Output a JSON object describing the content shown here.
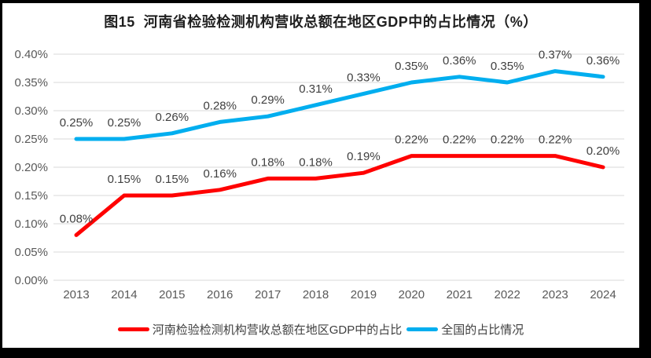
{
  "title": "图15  河南省检验检测机构营收总额在地区GDP中的占比情况（%）",
  "colors": {
    "frame_border": "#000000",
    "background": "#FFFFFF",
    "gridline": "#D9D9D9",
    "axis_text": "#595959",
    "data_label_text": "#3F3F3F",
    "title_text": "#1F1F1F",
    "legend_text": "#404040"
  },
  "chart_data": {
    "type": "line",
    "title": "图15 河南省检验检测机构营收总额在地区GDP中的占比情况（%）",
    "categories": [
      "2013",
      "2014",
      "2015",
      "2016",
      "2017",
      "2018",
      "2019",
      "2020",
      "2021",
      "2022",
      "2023",
      "2024"
    ],
    "series": [
      {
        "name": "河南检验检测机构营收总额在地区GDP中的占比",
        "color": "#FF0000",
        "values": [
          0.08,
          0.15,
          0.15,
          0.16,
          0.18,
          0.18,
          0.19,
          0.22,
          0.22,
          0.22,
          0.22,
          0.2
        ],
        "point_labels": [
          "0.08%",
          "0.15%",
          "0.15%",
          "0.16%",
          "0.18%",
          "0.18%",
          "0.19%",
          "0.22%",
          "0.22%",
          "0.22%",
          "0.22%",
          "0.20%"
        ]
      },
      {
        "name": "全国的占比情况",
        "color": "#00AEEF",
        "values": [
          0.25,
          0.25,
          0.26,
          0.28,
          0.29,
          0.31,
          0.33,
          0.35,
          0.36,
          0.35,
          0.37,
          0.36
        ],
        "point_labels": [
          "0.25%",
          "0.25%",
          "0.26%",
          "0.28%",
          "0.29%",
          "0.31%",
          "0.33%",
          "0.35%",
          "0.36%",
          "0.35%",
          "0.37%",
          "0.36%"
        ]
      }
    ],
    "xlabel": "",
    "ylabel": "",
    "ylim": [
      0,
      0.4
    ],
    "yticks": [
      {
        "value": 0.0,
        "label": "0.00%"
      },
      {
        "value": 0.05,
        "label": "0.05%"
      },
      {
        "value": 0.1,
        "label": "0.10%"
      },
      {
        "value": 0.15,
        "label": "0.15%"
      },
      {
        "value": 0.2,
        "label": "0.20%"
      },
      {
        "value": 0.25,
        "label": "0.25%"
      },
      {
        "value": 0.3,
        "label": "0.30%"
      },
      {
        "value": 0.35,
        "label": "0.35%"
      },
      {
        "value": 0.4,
        "label": "0.40%"
      }
    ],
    "grid": "horizontal",
    "legend_position": "bottom",
    "data_labels_shown": true
  }
}
